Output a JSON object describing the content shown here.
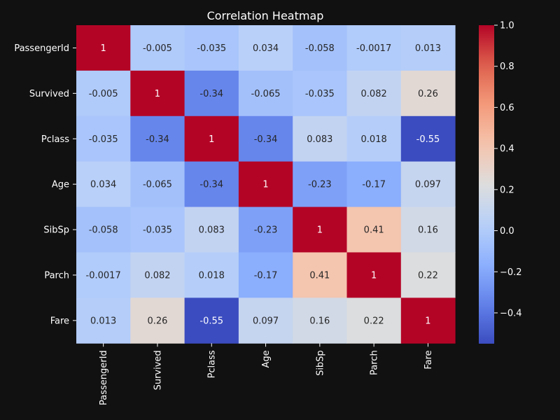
{
  "chart_data": {
    "type": "heatmap",
    "title": "Correlation Heatmap",
    "xlabel": "",
    "ylabel": "",
    "colormap": "coolwarm",
    "colorbar": {
      "min": -0.55,
      "max": 1.0,
      "ticks": [
        1.0,
        0.8,
        0.6,
        0.4,
        0.2,
        0.0,
        -0.2,
        -0.4
      ],
      "tick_labels": [
        "1.0",
        "0.8",
        "0.6",
        "0.4",
        "0.2",
        "0.0",
        "−0.2",
        "−0.4"
      ]
    },
    "rows": [
      "PassengerId",
      "Survived",
      "Pclass",
      "Age",
      "SibSp",
      "Parch",
      "Fare"
    ],
    "columns": [
      "PassengerId",
      "Survived",
      "Pclass",
      "Age",
      "SibSp",
      "Parch",
      "Fare"
    ],
    "values": [
      [
        1,
        -0.005,
        -0.035,
        0.034,
        -0.058,
        -0.0017,
        0.013
      ],
      [
        -0.005,
        1,
        -0.34,
        -0.065,
        -0.035,
        0.082,
        0.26
      ],
      [
        -0.035,
        -0.34,
        1,
        -0.34,
        0.083,
        0.018,
        -0.55
      ],
      [
        0.034,
        -0.065,
        -0.34,
        1,
        -0.23,
        -0.17,
        0.097
      ],
      [
        -0.058,
        -0.035,
        0.083,
        -0.23,
        1,
        0.41,
        0.16
      ],
      [
        -0.0017,
        0.082,
        0.018,
        -0.17,
        0.41,
        1,
        0.22
      ],
      [
        0.013,
        0.26,
        -0.55,
        0.097,
        0.16,
        0.22,
        1
      ]
    ],
    "annotations": [
      [
        "1",
        "-0.005",
        "-0.035",
        "0.034",
        "-0.058",
        "-0.0017",
        "0.013"
      ],
      [
        "-0.005",
        "1",
        "-0.34",
        "-0.065",
        "-0.035",
        "0.082",
        "0.26"
      ],
      [
        "-0.035",
        "-0.34",
        "1",
        "-0.34",
        "0.083",
        "0.018",
        "-0.55"
      ],
      [
        "0.034",
        "-0.065",
        "-0.34",
        "1",
        "-0.23",
        "-0.17",
        "0.097"
      ],
      [
        "-0.058",
        "-0.035",
        "0.083",
        "-0.23",
        "1",
        "0.41",
        "0.16"
      ],
      [
        "-0.0017",
        "0.082",
        "0.018",
        "-0.17",
        "0.41",
        "1",
        "0.22"
      ],
      [
        "0.013",
        "0.26",
        "-0.55",
        "0.097",
        "0.16",
        "0.22",
        "1"
      ]
    ],
    "colors": {
      "background": "#111111",
      "text": "#ffffff",
      "annotation_dark": "#262626",
      "annotation_light": "#ffffff"
    }
  }
}
